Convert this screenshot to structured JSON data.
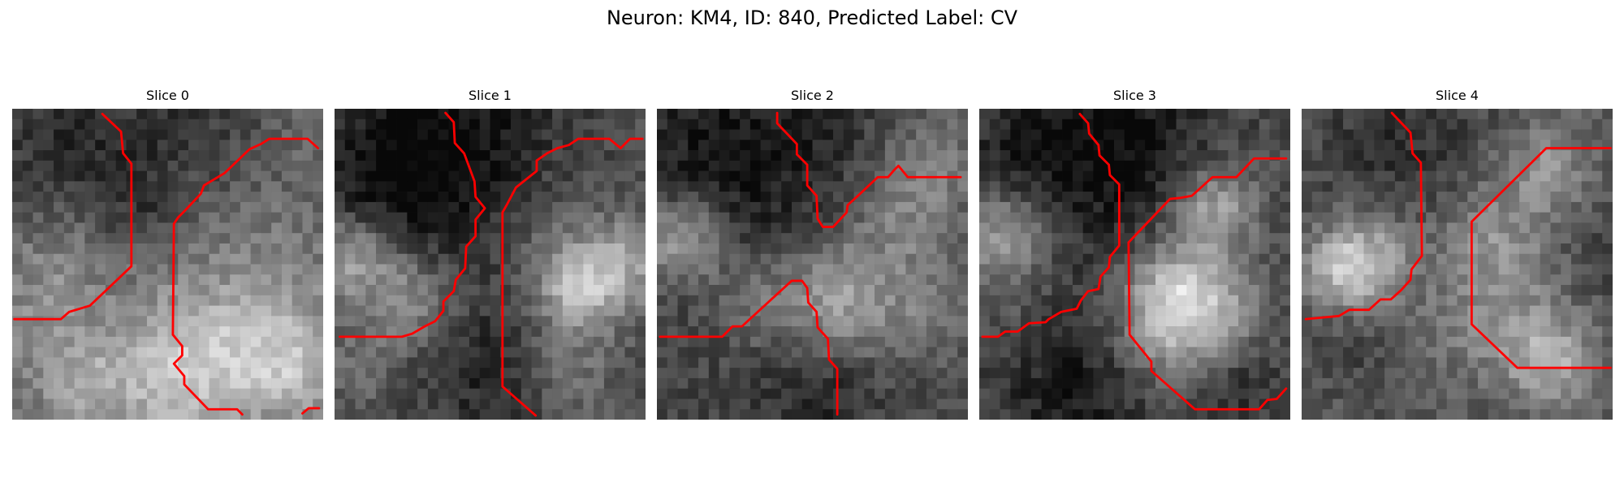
{
  "figure_title": "Neuron: KM4, ID: 840, Predicted Label: CV",
  "contour_color": "#ff0000",
  "slices": [
    {
      "title": "Slice 0"
    },
    {
      "title": "Slice 1"
    },
    {
      "title": "Slice 2"
    },
    {
      "title": "Slice 3"
    },
    {
      "title": "Slice 4"
    }
  ]
}
